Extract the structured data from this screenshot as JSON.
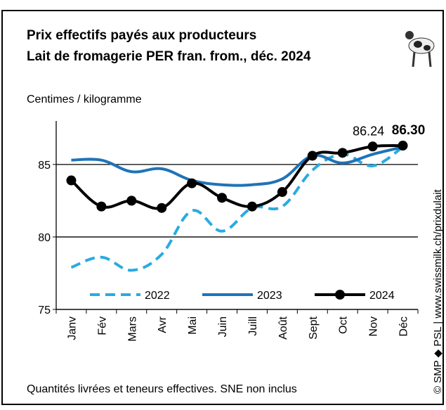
{
  "chart_data": {
    "type": "line",
    "title": "Prix effectifs payés aux producteurs",
    "subtitle": "Lait de fromagerie PER fran. from., déc. 2024",
    "y_label": "Centimes / kilogramme",
    "footnote": "Quantités livrées et teneurs effectives.  SNE non inclus",
    "source": "© SMP ◆ PSL | www.swissmilk.ch/prixdulait",
    "categories": [
      "Janv",
      "Fév",
      "Mars",
      "Avr",
      "Mai",
      "Juin",
      "Juill",
      "Août",
      "Sept",
      "Oct",
      "Nov",
      "Déc"
    ],
    "series": [
      {
        "name": "2022",
        "color": "#29abe2",
        "dashed": true,
        "markers": false,
        "values": [
          77.9,
          78.6,
          77.7,
          78.8,
          81.8,
          80.4,
          82.0,
          82.1,
          84.6,
          85.7,
          84.9,
          86.2
        ]
      },
      {
        "name": "2023",
        "color": "#1f73b7",
        "dashed": false,
        "markers": false,
        "values": [
          85.3,
          85.3,
          84.5,
          84.7,
          83.9,
          83.6,
          83.6,
          84.0,
          85.6,
          85.1,
          85.7,
          86.2
        ]
      },
      {
        "name": "2024",
        "color": "#000000",
        "dashed": false,
        "markers": true,
        "values": [
          83.9,
          82.1,
          82.5,
          82.0,
          83.7,
          82.7,
          82.1,
          83.1,
          85.6,
          85.8,
          86.24,
          86.3
        ],
        "value_labels": [
          null,
          null,
          null,
          null,
          null,
          null,
          null,
          null,
          null,
          null,
          "86.24",
          "86.30"
        ]
      }
    ],
    "ylim": [
      75,
      88
    ],
    "yticks": [
      75,
      80,
      85
    ],
    "grid": true
  }
}
